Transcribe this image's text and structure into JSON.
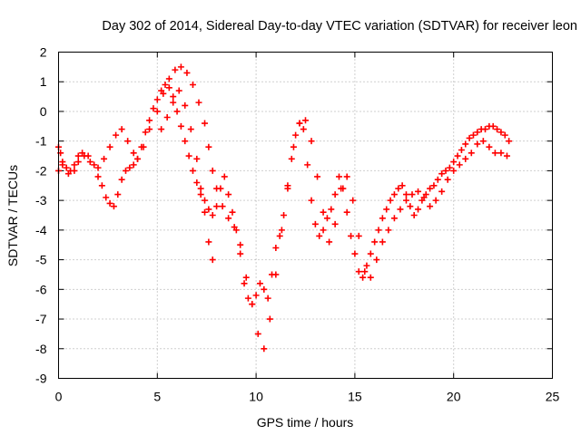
{
  "chart_data": {
    "type": "scatter",
    "title": "Day 302 of 2014, Sidereal Day-to-day VTEC variation (SDTVAR) for receiver leon",
    "xlabel": "GPS time / hours",
    "ylabel": "SDTVAR / TECUs",
    "xlim": [
      0,
      25
    ],
    "ylim": [
      -9,
      2
    ],
    "xticks": [
      0,
      5,
      10,
      15,
      20,
      25
    ],
    "yticks": [
      2,
      1,
      0,
      -1,
      -2,
      -3,
      -4,
      -5,
      -6,
      -7,
      -8,
      -9
    ],
    "grid": true,
    "marker": "+",
    "color": "#ff0000",
    "series": [
      {
        "x": [
          0.0,
          0.1,
          0.2,
          0.4,
          0.6,
          0.8,
          1.0,
          1.2,
          1.5,
          1.8,
          2.0,
          2.2,
          2.4,
          2.6,
          2.8,
          3.0,
          3.2,
          3.4,
          3.6,
          3.8,
          4.0,
          4.2,
          4.4,
          4.6,
          4.8,
          5.0,
          5.2,
          5.4,
          5.6,
          5.8,
          6.0,
          6.2,
          6.4,
          6.6,
          6.8,
          7.0,
          7.2,
          7.4,
          7.6,
          7.8,
          8.0,
          8.2,
          8.4,
          8.6,
          8.8,
          9.0,
          9.2,
          9.4,
          9.6,
          9.8,
          10.0,
          10.2,
          10.4,
          10.6,
          10.8,
          11.0,
          11.2,
          11.4,
          11.6,
          11.8,
          12.0,
          12.2,
          12.4,
          12.6,
          12.8,
          13.0,
          13.2,
          13.4,
          13.6,
          13.8,
          14.0,
          14.2,
          14.4,
          14.6,
          14.8,
          15.0,
          15.2,
          15.4,
          15.6,
          15.8,
          16.0,
          16.2,
          16.4,
          16.6,
          16.8,
          17.0,
          17.2,
          17.4,
          17.6,
          17.8,
          18.0,
          18.2,
          18.4,
          18.6,
          18.8,
          19.0,
          19.2,
          19.4,
          19.6,
          19.8,
          20.0,
          20.2,
          20.4,
          20.6,
          20.8,
          21.0,
          21.2,
          21.4,
          21.6,
          21.8,
          22.0,
          22.2,
          22.4,
          22.6,
          22.8
        ],
        "y": [
          -1.2,
          -1.4,
          -1.7,
          -1.9,
          -2.0,
          -1.8,
          -1.5,
          -1.4,
          -1.5,
          -1.8,
          -2.2,
          -2.5,
          -2.9,
          -3.1,
          -3.2,
          -2.8,
          -2.3,
          -2.0,
          -1.9,
          -1.8,
          -1.6,
          -1.2,
          -0.7,
          -0.3,
          0.1,
          0.4,
          0.7,
          0.9,
          0.8,
          0.5,
          0.0,
          -0.5,
          -1.0,
          -1.5,
          -2.0,
          -2.4,
          -2.8,
          -3.0,
          -3.3,
          -3.5,
          -3.2,
          -2.6,
          -2.2,
          -2.8,
          -3.4,
          -4.0,
          -4.8,
          -5.8,
          -6.3,
          -6.5,
          -6.2,
          -5.8,
          -6.0,
          -6.3,
          -5.5,
          -4.6,
          -4.2,
          -3.5,
          -2.6,
          -1.6,
          -0.8,
          -0.4,
          -0.6,
          -1.8,
          -3.0,
          -3.8,
          -4.2,
          -4.0,
          -3.6,
          -3.3,
          -2.8,
          -2.2,
          -2.6,
          -3.4,
          -4.2,
          -4.8,
          -5.4,
          -5.6,
          -5.2,
          -4.8,
          -4.4,
          -4.0,
          -3.6,
          -3.3,
          -3.0,
          -2.8,
          -2.6,
          -2.5,
          -2.8,
          -3.2,
          -3.5,
          -3.3,
          -3.0,
          -2.8,
          -2.6,
          -2.5,
          -2.3,
          -2.1,
          -2.0,
          -1.9,
          -1.7,
          -1.5,
          -1.3,
          -1.1,
          -0.9,
          -0.8,
          -0.7,
          -0.6,
          -0.6,
          -0.5,
          -0.5,
          -0.6,
          -0.7,
          -0.8,
          -1.0
        ]
      },
      {
        "x": [
          0.0,
          0.2,
          0.5,
          0.8,
          1.0,
          1.3,
          1.6,
          2.0,
          2.3,
          2.6,
          2.9,
          3.2,
          3.5,
          3.8,
          4.0,
          4.3,
          4.6,
          5.0,
          5.3,
          5.6,
          5.9,
          6.2,
          6.5,
          6.8,
          7.1,
          7.4,
          7.6,
          7.8,
          8.0,
          8.3,
          8.6,
          8.9,
          9.2,
          9.5,
          9.8,
          10.1,
          10.4,
          10.7,
          11.0,
          11.3,
          11.6,
          11.9,
          12.2,
          12.5,
          12.8,
          13.1,
          13.4,
          13.7,
          14.0,
          14.3,
          14.6,
          14.9,
          15.2,
          15.5,
          15.8,
          16.1,
          16.4,
          16.7,
          17.0,
          17.3,
          17.6,
          17.9,
          18.2,
          18.5,
          18.8,
          19.1,
          19.4,
          19.7,
          20.0,
          20.3,
          20.6,
          20.9,
          21.2,
          21.5,
          21.8,
          22.1,
          22.4,
          22.7
        ],
        "y": [
          -2.0,
          -1.8,
          -2.1,
          -2.0,
          -1.7,
          -1.5,
          -1.7,
          -1.9,
          -1.6,
          -1.2,
          -0.8,
          -0.6,
          -1.0,
          -1.4,
          -1.6,
          -1.2,
          -0.6,
          0.0,
          0.6,
          1.1,
          1.4,
          1.5,
          1.3,
          0.9,
          0.3,
          -0.4,
          -1.2,
          -2.0,
          -2.6,
          -3.2,
          -3.6,
          -3.9,
          -4.5,
          -5.6,
          -6.5,
          -7.5,
          -8.0,
          -7.0,
          -5.5,
          -4.0,
          -2.5,
          -1.2,
          -0.4,
          -0.3,
          -1.0,
          -2.2,
          -3.4,
          -4.4,
          -3.8,
          -2.6,
          -2.2,
          -3.0,
          -4.2,
          -5.4,
          -5.6,
          -5.0,
          -4.4,
          -4.0,
          -3.6,
          -3.3,
          -3.0,
          -2.8,
          -2.7,
          -2.9,
          -3.2,
          -3.0,
          -2.7,
          -2.3,
          -2.0,
          -1.8,
          -1.6,
          -1.4,
          -1.1,
          -1.0,
          -1.2,
          -1.4,
          -1.4,
          -1.5
        ]
      },
      {
        "x": [
          5.2,
          5.5,
          5.8,
          6.1,
          6.4,
          6.7,
          7.0,
          7.2,
          7.4,
          7.6,
          7.8
        ],
        "y": [
          -0.6,
          -0.2,
          0.3,
          0.7,
          0.2,
          -0.6,
          -1.6,
          -2.6,
          -3.4,
          -4.4,
          -5.0
        ]
      }
    ]
  }
}
